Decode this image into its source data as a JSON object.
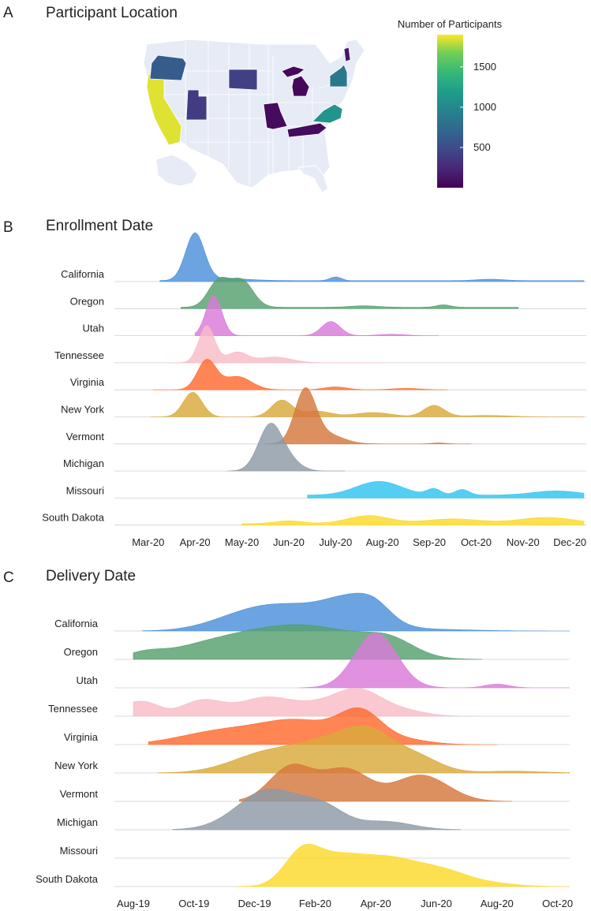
{
  "panels": {
    "A": {
      "letter": "A",
      "title": "Participant Location"
    },
    "B": {
      "letter": "B",
      "title": "Enrollment Date"
    },
    "C": {
      "letter": "C",
      "title": "Delivery Date"
    }
  },
  "colors": {
    "map_background": "#e6ebf5",
    "state_border": "#ffffff",
    "California": "#4a90d9",
    "Oregon": "#55a06e",
    "Utah": "#d97ad9",
    "Tennessee": "#f8bcc6",
    "Virginia": "#ff6a2e",
    "New York": "#d9a93a",
    "Vermont": "#d6783c",
    "Michigan": "#8c9aa6",
    "Missouri": "#2ec4f0",
    "South Dakota": "#fbd92a"
  },
  "chart_data": [
    {
      "type": "choropleth",
      "title": "Participant Location",
      "legend_title": "Number of Participants",
      "colorscale": "viridis",
      "range": [
        0,
        1900
      ],
      "ticks": [
        {
          "value": 500,
          "label": "500"
        },
        {
          "value": 1000,
          "label": "1000"
        },
        {
          "value": 1500,
          "label": "1500"
        }
      ],
      "states": [
        {
          "name": "California",
          "participants": 1850
        },
        {
          "name": "Oregon",
          "participants": 620
        },
        {
          "name": "Utah",
          "participants": 380
        },
        {
          "name": "South Dakota",
          "participants": 420
        },
        {
          "name": "Michigan",
          "participants": 40
        },
        {
          "name": "Missouri",
          "participants": 60
        },
        {
          "name": "Tennessee",
          "participants": 60
        },
        {
          "name": "Virginia",
          "participants": 1100
        },
        {
          "name": "New York",
          "participants": 850
        },
        {
          "name": "Vermont",
          "participants": 120
        }
      ]
    },
    {
      "type": "ridgeline",
      "title": "Enrollment Date",
      "x_unit": "months since Mar-20",
      "xlim": [
        -0.35,
        9.35
      ],
      "x_ticks": [
        {
          "value": 0,
          "label": "Mar-20"
        },
        {
          "value": 1,
          "label": "Apr-20"
        },
        {
          "value": 2,
          "label": "May-20"
        },
        {
          "value": 3,
          "label": "Jun-20"
        },
        {
          "value": 4,
          "label": "July-20"
        },
        {
          "value": 5,
          "label": "Aug-20"
        },
        {
          "value": 6,
          "label": "Sep-20"
        },
        {
          "value": 7,
          "label": "Oct-20"
        },
        {
          "value": 8,
          "label": "Nov-20"
        },
        {
          "value": 9,
          "label": "Dec-20"
        }
      ],
      "series": [
        {
          "name": "California",
          "start": 0.25,
          "end": 9.3,
          "base": 0.02,
          "peaks": [
            [
              1.0,
              1.0,
              0.2
            ],
            [
              1.7,
              0.04,
              0.5
            ],
            [
              4.0,
              0.08,
              0.12
            ],
            [
              7.3,
              0.03,
              0.3
            ]
          ]
        },
        {
          "name": "Oregon",
          "start": 0.7,
          "end": 7.9,
          "base": 0.03,
          "peaks": [
            [
              1.5,
              0.55,
              0.22
            ],
            [
              2.0,
              0.56,
              0.24
            ],
            [
              4.6,
              0.03,
              0.3
            ],
            [
              6.3,
              0.05,
              0.15
            ]
          ]
        },
        {
          "name": "Utah",
          "start": 1.0,
          "end": 6.2,
          "base": 0.0,
          "peaks": [
            [
              1.4,
              0.85,
              0.17
            ],
            [
              3.9,
              0.3,
              0.2
            ],
            [
              5.2,
              0.03,
              0.3
            ]
          ]
        },
        {
          "name": "Tennessee",
          "start": 0.4,
          "end": 5.0,
          "base": 0.0,
          "peaks": [
            [
              1.25,
              0.78,
              0.17
            ],
            [
              1.9,
              0.22,
              0.22
            ],
            [
              2.7,
              0.12,
              0.35
            ]
          ]
        },
        {
          "name": "Virginia",
          "start": 0.1,
          "end": 6.4,
          "base": 0.0,
          "peaks": [
            [
              1.25,
              0.62,
              0.2
            ],
            [
              1.9,
              0.28,
              0.3
            ],
            [
              4.0,
              0.06,
              0.25
            ],
            [
              5.5,
              0.03,
              0.3
            ]
          ]
        },
        {
          "name": "New York",
          "start": 0.05,
          "end": 9.3,
          "base": 0.0,
          "peaks": [
            [
              0.95,
              0.52,
              0.2
            ],
            [
              2.85,
              0.35,
              0.22
            ],
            [
              3.6,
              0.12,
              0.3
            ],
            [
              4.8,
              0.09,
              0.4
            ],
            [
              6.1,
              0.24,
              0.22
            ],
            [
              7.2,
              0.03,
              0.5
            ]
          ]
        },
        {
          "name": "Vermont",
          "start": 2.5,
          "end": 6.9,
          "base": 0.0,
          "peaks": [
            [
              3.35,
              1.1,
              0.22
            ],
            [
              3.8,
              0.2,
              0.35
            ],
            [
              6.2,
              0.02,
              0.15
            ]
          ]
        },
        {
          "name": "Michigan",
          "start": 1.7,
          "end": 4.2,
          "base": 0.0,
          "peaks": [
            [
              2.6,
              0.95,
              0.25
            ],
            [
              3.0,
              0.2,
              0.25
            ]
          ]
        },
        {
          "name": "Missouri",
          "start": 3.4,
          "end": 9.3,
          "base": 0.06,
          "peaks": [
            [
              4.8,
              0.22,
              0.45
            ],
            [
              5.2,
              0.1,
              0.4
            ],
            [
              6.1,
              0.13,
              0.15
            ],
            [
              6.7,
              0.12,
              0.15
            ],
            [
              8.7,
              0.09,
              0.5
            ]
          ]
        },
        {
          "name": "South Dakota",
          "start": 2.0,
          "end": 9.3,
          "base": 0.03,
          "peaks": [
            [
              3.0,
              0.06,
              0.3
            ],
            [
              4.7,
              0.17,
              0.45
            ],
            [
              6.5,
              0.1,
              0.6
            ],
            [
              8.5,
              0.13,
              0.6
            ]
          ]
        }
      ]
    },
    {
      "type": "ridgeline",
      "title": "Delivery Date",
      "x_unit": "months since Aug-19",
      "xlim": [
        0,
        14.4
      ],
      "x_ticks": [
        {
          "value": 0,
          "label": "Aug-19"
        },
        {
          "value": 2,
          "label": "Oct-19"
        },
        {
          "value": 4,
          "label": "Dec-19"
        },
        {
          "value": 6,
          "label": "Feb-20"
        },
        {
          "value": 8,
          "label": "Apr-20"
        },
        {
          "value": 10,
          "label": "Jun-20"
        },
        {
          "value": 12,
          "label": "Aug-20"
        },
        {
          "value": 14,
          "label": "Oct-20"
        }
      ],
      "series": [
        {
          "name": "California",
          "start": 0.3,
          "end": 14.4,
          "base": 0.0,
          "peaks": [
            [
              3.8,
              0.35,
              1.2
            ],
            [
              5.5,
              0.4,
              1.2
            ],
            [
              7.3,
              0.6,
              0.9
            ],
            [
              8.0,
              0.2,
              0.5
            ],
            [
              9.5,
              0.04,
              1.5
            ]
          ]
        },
        {
          "name": "Oregon",
          "start": 0.0,
          "end": 11.5,
          "base": 0.0,
          "peaks": [
            [
              0.4,
              0.12,
              0.6
            ],
            [
              2.5,
              0.3,
              1.3
            ],
            [
              4.5,
              0.4,
              1.3
            ],
            [
              6.5,
              0.55,
              1.5
            ],
            [
              8.5,
              0.3,
              0.8
            ]
          ]
        },
        {
          "name": "Utah",
          "start": 5.5,
          "end": 14.4,
          "base": 0.0,
          "peaks": [
            [
              8.0,
              1.2,
              0.7
            ],
            [
              12.0,
              0.08,
              0.4
            ]
          ]
        },
        {
          "name": "Tennessee",
          "start": 0.0,
          "end": 11.5,
          "base": 0.0,
          "peaks": [
            [
              0.0,
              0.28,
              0.6
            ],
            [
              0.6,
              0.1,
              0.4
            ],
            [
              2.3,
              0.35,
              0.7
            ],
            [
              4.3,
              0.38,
              0.8
            ],
            [
              7.4,
              0.58,
              0.8
            ],
            [
              5.8,
              0.2,
              0.8
            ],
            [
              9.0,
              0.1,
              0.7
            ]
          ]
        },
        {
          "name": "Virginia",
          "start": 0.5,
          "end": 12.0,
          "base": 0.0,
          "peaks": [
            [
              3.0,
              0.3,
              1.4
            ],
            [
              5.5,
              0.48,
              1.2
            ],
            [
              7.5,
              0.66,
              0.7
            ],
            [
              9.0,
              0.1,
              0.8
            ]
          ]
        },
        {
          "name": "New York",
          "start": 0.8,
          "end": 14.4,
          "base": 0.0,
          "peaks": [
            [
              4.5,
              0.45,
              1.2
            ],
            [
              6.5,
              0.55,
              1.0
            ],
            [
              7.8,
              0.7,
              0.8
            ],
            [
              9.3,
              0.35,
              0.8
            ],
            [
              12.5,
              0.04,
              1.0
            ]
          ]
        },
        {
          "name": "Vermont",
          "start": 3.5,
          "end": 12.5,
          "base": 0.0,
          "peaks": [
            [
              5.2,
              0.75,
              0.7
            ],
            [
              7.0,
              0.7,
              0.8
            ],
            [
              9.3,
              0.42,
              0.8
            ],
            [
              10.0,
              0.2,
              0.8
            ]
          ]
        },
        {
          "name": "Michigan",
          "start": 1.3,
          "end": 10.8,
          "base": 0.0,
          "peaks": [
            [
              4.5,
              0.88,
              1.05
            ],
            [
              6.3,
              0.4,
              0.7
            ],
            [
              8.3,
              0.18,
              0.9
            ]
          ]
        },
        {
          "name": "Missouri",
          "start": 0.0,
          "end": 0.0,
          "base": 0.0,
          "peaks": []
        },
        {
          "name": "South Dakota",
          "start": 3.4,
          "end": 14.4,
          "base": 0.0,
          "peaks": [
            [
              5.6,
              0.78,
              0.6
            ],
            [
              6.8,
              0.45,
              0.7
            ],
            [
              8.3,
              0.6,
              1.0
            ],
            [
              10.2,
              0.32,
              0.9
            ],
            [
              12.0,
              0.05,
              0.8
            ]
          ]
        }
      ]
    }
  ]
}
